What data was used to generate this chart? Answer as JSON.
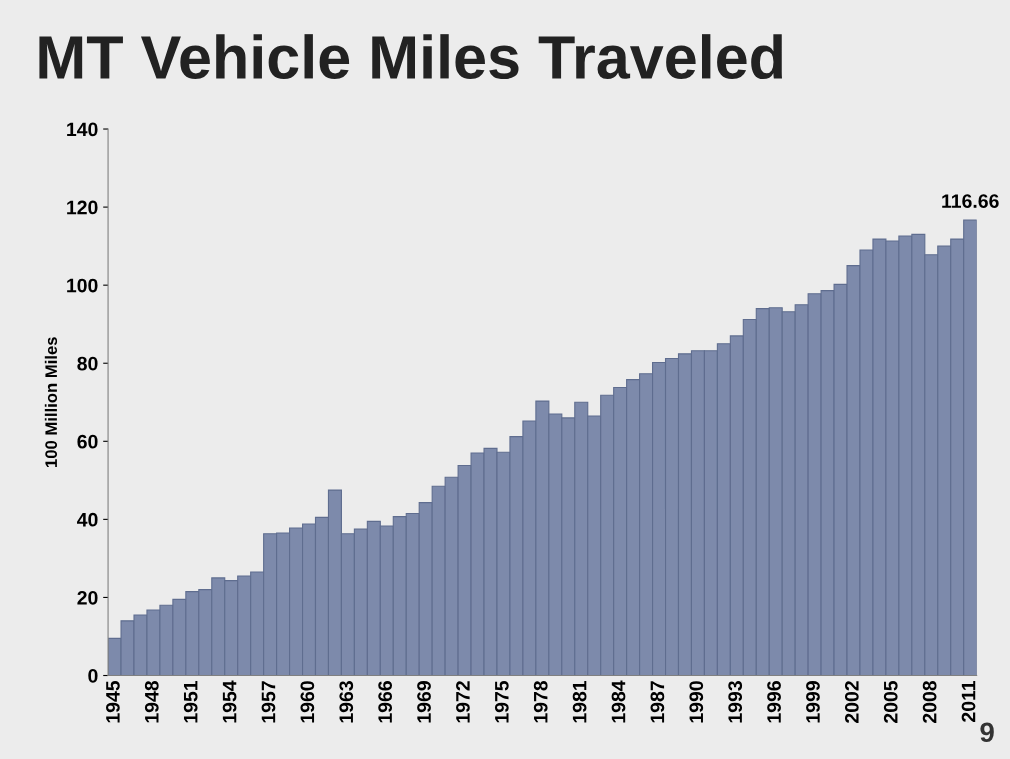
{
  "chart_data": {
    "type": "bar",
    "title": "MT Vehicle Miles Traveled",
    "ylabel": "100 Million Miles",
    "categories": [
      "1945",
      null,
      null,
      "1948",
      null,
      null,
      "1951",
      null,
      null,
      "1954",
      null,
      null,
      "1957",
      null,
      null,
      "1960",
      null,
      null,
      "1963",
      null,
      null,
      "1966",
      null,
      null,
      "1969",
      null,
      null,
      "1972",
      null,
      null,
      "1975",
      null,
      null,
      "1978",
      null,
      null,
      "1981",
      null,
      null,
      "1984",
      null,
      null,
      "1987",
      null,
      null,
      "1990",
      null,
      null,
      "1993",
      null,
      null,
      "1996",
      null,
      null,
      "1999",
      null,
      null,
      "2002",
      null,
      null,
      "2005",
      null,
      null,
      "2008",
      null,
      null,
      "2011"
    ],
    "values": [
      9.5,
      14,
      15.5,
      16.8,
      18,
      19.5,
      21.5,
      22,
      25,
      24.3,
      25.5,
      26.5,
      36.3,
      36.5,
      37.8,
      38.8,
      40.5,
      47.5,
      36.3,
      37.5,
      39.5,
      38.3,
      40.7,
      41.5,
      44.3,
      48.5,
      50.8,
      53.8,
      57,
      58.2,
      57.2,
      61.2,
      65.2,
      70.3,
      67,
      66,
      70,
      66.5,
      71.8,
      73.8,
      75.8,
      77.3,
      80.2,
      81.2,
      82.4,
      83.2,
      83.2,
      85,
      87,
      91.2,
      94,
      94.2,
      93.2,
      95,
      97.8,
      98.6,
      100.2,
      105,
      109,
      111.8,
      111.3,
      112.6,
      113,
      107.8,
      110,
      111.8,
      116.66
    ],
    "value_labels": [
      null,
      null,
      null,
      null,
      null,
      null,
      null,
      null,
      null,
      null,
      null,
      null,
      null,
      null,
      null,
      null,
      null,
      null,
      null,
      null,
      null,
      null,
      null,
      null,
      null,
      null,
      null,
      null,
      null,
      null,
      null,
      null,
      null,
      null,
      null,
      null,
      null,
      null,
      null,
      null,
      null,
      null,
      null,
      null,
      null,
      null,
      null,
      null,
      null,
      null,
      null,
      null,
      null,
      null,
      null,
      null,
      null,
      null,
      null,
      null,
      null,
      null,
      null,
      null,
      null,
      null,
      "116.66"
    ],
    "color": "#7d8aab",
    "ylim": [
      0,
      140
    ],
    "yticks": [
      0,
      20,
      40,
      60,
      80,
      100,
      120,
      140
    ],
    "grid": false,
    "annotations": [
      "9"
    ]
  }
}
